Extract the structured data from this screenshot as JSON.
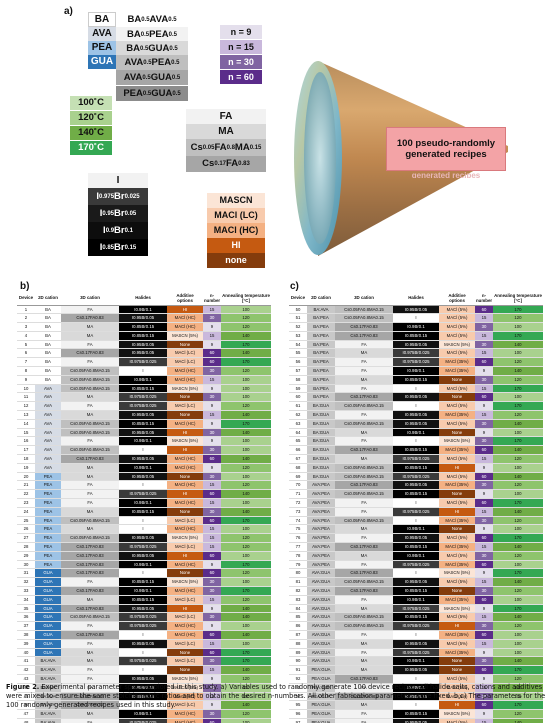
{
  "panels": {
    "a": "a)",
    "b": "b)",
    "c": "c)"
  },
  "panel_a": {
    "twod_single": [
      "BA",
      "AVA",
      "PEA",
      "GUA"
    ],
    "twod_mix": [
      {
        "p1": "BA",
        "p2": "0.5",
        "p3": "AVA",
        "p4": "0.5"
      },
      {
        "p1": "BA",
        "p2": "0.5",
        "p3": "PEA",
        "p4": "0.5"
      },
      {
        "p1": "BA",
        "p2": "0.5",
        "p3": "GUA",
        "p4": "0.5"
      },
      {
        "p1": "AVA",
        "p2": "0.5",
        "p3": "PEA",
        "p4": "0.5"
      },
      {
        "p1": "AVA",
        "p2": "0.5",
        "p3": "GUA",
        "p4": "0.5"
      },
      {
        "p1": "PEA",
        "p2": "0.5",
        "p3": "GUA",
        "p4": "0.5"
      }
    ],
    "n_values": [
      "n = 9",
      "n = 15",
      "n = 30",
      "n = 60"
    ],
    "temperatures": [
      "100˚C",
      "120˚C",
      "140˚C",
      "170˚C"
    ],
    "cations3d": {
      "fa": "FA",
      "ma": "MA",
      "cs1": {
        "a": "Cs",
        "b": "0.05",
        "c": "FA",
        "d": "0.8",
        "e": "MA",
        "f": "0.15"
      },
      "cs2": {
        "a": "Cs",
        "b": "0.17",
        "c": "FA",
        "d": "0.83"
      }
    },
    "halides": {
      "i": "I",
      "h1": {
        "a": "I",
        "b": "0.975",
        "c": "Br",
        "d": "0.025"
      },
      "h2": {
        "a": "I",
        "b": "0.95",
        "c": "Br",
        "d": "0.05"
      },
      "h3": {
        "a": "I",
        "b": "0.9",
        "c": "Br",
        "d": "0.1"
      },
      "h4": {
        "a": "I",
        "b": "0.85",
        "c": "Br",
        "d": "0.15"
      }
    },
    "additives": [
      "MASCN",
      "MACl (LC)",
      "MACl (HC)",
      "HI",
      "none"
    ],
    "recipes": [
      "100 pseudo-randomly",
      "generated recipes"
    ],
    "recipes_ghost": "generated recipes"
  },
  "colors": {
    "BA": "#ffffff",
    "AVA": "#d6dce5",
    "PEA": "#9dc3e6",
    "GUA": "#2e75b6",
    "MIX": "#c8c8c8",
    "h_I": "#ffffff",
    "h_975": "#3a3a3a",
    "h_95": "#111111",
    "h_9": "#000000",
    "h_85": "#000000",
    "add_MASCN": "#fbe5d6",
    "add_LC": "#f8cbad",
    "add_HC": "#f4b183",
    "add_HI": "#c55a11",
    "add_none": "#843c0c",
    "n9": "#e4dfec",
    "n15": "#c9b8dc",
    "n30": "#8064a2",
    "n60": "#5b2c8a",
    "t100": "#a9d18e",
    "t120": "#8ec46d",
    "t140": "#70ad47",
    "t170": "#34a853"
  },
  "table_headers": [
    "Device",
    "2D cation",
    "3D cation",
    "Halides",
    "Additive options",
    "n-number",
    "Annealing temperature [°C]"
  ],
  "table_b": [
    [
      "1",
      "BA",
      "FA",
      "I0.9Br0.1",
      "HI",
      "15",
      "100"
    ],
    [
      "2",
      "BA",
      "Cs0.17FA0.83",
      "I0.95Br0.05",
      "MACl (HC)",
      "30",
      "120"
    ],
    [
      "3",
      "BA",
      "MA",
      "I0.85Br0.15",
      "MACl (HC)",
      "9",
      "120"
    ],
    [
      "4",
      "BA",
      "MA",
      "I0.85Br0.15",
      "MASCN (5%)",
      "15",
      "140"
    ],
    [
      "5",
      "BA",
      "FA",
      "I0.95Br0.05",
      "None",
      "9",
      "170"
    ],
    [
      "6",
      "BA",
      "Cs0.17FA0.83",
      "I0.95Br0.05",
      "MACl (LC)",
      "60",
      "140"
    ],
    [
      "7",
      "BA",
      "FA",
      "I0.975Br0.025",
      "MACl (LC)",
      "60",
      "170"
    ],
    [
      "8",
      "BA",
      "Cs0.05FA0.8MA0.15",
      "I",
      "MACl (HC)",
      "30",
      "120"
    ],
    [
      "9",
      "BA",
      "Cs0.05FA0.8MA0.15",
      "I0.9Br0.1",
      "MACl (HC)",
      "15",
      "100"
    ],
    [
      "10",
      "AVA",
      "Cs0.05FA0.8MA0.15",
      "I0.85Br0.15",
      "MASCN (5%)",
      "9",
      "100"
    ],
    [
      "11",
      "AVA",
      "MA",
      "I0.975Br0.025",
      "None",
      "30",
      "100"
    ],
    [
      "12",
      "AVA",
      "FA",
      "I0.975Br0.025",
      "MACl (LC)",
      "9",
      "120"
    ],
    [
      "13",
      "AVA",
      "MA",
      "I0.95Br0.05",
      "None",
      "15",
      "140"
    ],
    [
      "14",
      "AVA",
      "Cs0.05FA0.8MA0.15",
      "I0.85Br0.15",
      "MACl (HC)",
      "9",
      "170"
    ],
    [
      "15",
      "AVA",
      "Cs0.05FA0.8MA0.15",
      "I0.95Br0.05",
      "HI",
      "30",
      "140"
    ],
    [
      "16",
      "AVA",
      "FA",
      "I0.9Br0.1",
      "MASCN (5%)",
      "9",
      "100"
    ],
    [
      "17",
      "AVA",
      "Cs0.05FA0.8MA0.15",
      "I",
      "HI",
      "30",
      "100"
    ],
    [
      "18",
      "AVA",
      "Cs0.17FA0.83",
      "I0.95Br0.05",
      "MACl (HC)",
      "60",
      "140"
    ],
    [
      "19",
      "AVA",
      "MA",
      "I0.9Br0.1",
      "MACl (HC)",
      "9",
      "120"
    ],
    [
      "20",
      "PEA",
      "MA",
      "I0.95Br0.05",
      "None",
      "30",
      "100"
    ],
    [
      "21",
      "PEA",
      "FA",
      "I",
      "MACl (HC)",
      "15",
      "120"
    ],
    [
      "22",
      "PEA",
      "FA",
      "I0.975Br0.025",
      "HI",
      "60",
      "140"
    ],
    [
      "23",
      "PEA",
      "FA",
      "I0.9Br0.1",
      "MACl (HC)",
      "15",
      "100"
    ],
    [
      "24",
      "PEA",
      "MA",
      "I0.85Br0.15",
      "None",
      "30",
      "140"
    ],
    [
      "25",
      "PEA",
      "Cs0.05FA0.8MA0.15",
      "I",
      "MACl (LC)",
      "60",
      "170"
    ],
    [
      "26",
      "PEA",
      "MA",
      "I",
      "MACl (HC)",
      "15",
      "100"
    ],
    [
      "27",
      "PEA",
      "Cs0.05FA0.8MA0.15",
      "I0.95Br0.05",
      "MASCN (5%)",
      "15",
      "120"
    ],
    [
      "28",
      "PEA",
      "Cs0.17FA0.83",
      "I0.975Br0.025",
      "MACl (LC)",
      "15",
      "120"
    ],
    [
      "29",
      "PEA",
      "Cs0.17FA0.83",
      "I0.95Br0.05",
      "HI",
      "60",
      "100"
    ],
    [
      "30",
      "PEA",
      "Cs0.17FA0.83",
      "I0.9Br0.1",
      "MACl (HC)",
      "9",
      "170"
    ],
    [
      "31",
      "GUA",
      "Cs0.17FA0.83",
      "I",
      "None",
      "60",
      "120"
    ],
    [
      "32",
      "GUA",
      "FA",
      "I0.85Br0.15",
      "MASCN (5%)",
      "30",
      "100"
    ],
    [
      "33",
      "GUA",
      "Cs0.17FA0.83",
      "I0.9Br0.1",
      "MACl (HC)",
      "30",
      "170"
    ],
    [
      "34",
      "GUA",
      "MA",
      "I0.85Br0.15",
      "MACl (LC)",
      "15",
      "120"
    ],
    [
      "35",
      "GUA",
      "Cs0.17FA0.83",
      "I0.95Br0.05",
      "HI",
      "9",
      "140"
    ],
    [
      "36",
      "GUA",
      "Cs0.05FA0.8MA0.15",
      "I0.975Br0.025",
      "MACl (LC)",
      "30",
      "140"
    ],
    [
      "37",
      "GUA",
      "FA",
      "I0.975Br0.025",
      "MACl (HC)",
      "9",
      "100"
    ],
    [
      "38",
      "GUA",
      "Cs0.17FA0.83",
      "I",
      "MACl (HC)",
      "60",
      "140"
    ],
    [
      "39",
      "GUA",
      "FA",
      "I0.95Br0.05",
      "MACl (LC)",
      "15",
      "100"
    ],
    [
      "40",
      "GUA",
      "MA",
      "I",
      "None",
      "60",
      "170"
    ],
    [
      "41",
      "BA:AVA",
      "MA",
      "I0.975Br0.025",
      "MACl (LC)",
      "30",
      "170"
    ],
    [
      "42",
      "BA:AVA",
      "FA",
      "I",
      "None",
      "15",
      "140"
    ],
    [
      "43",
      "BA:AVA",
      "FA",
      "I0.95Br0.05",
      "MASCN (5%)",
      "9",
      "120"
    ],
    [
      "44",
      "BA:AVA",
      "FA",
      "I0.85Br0.15",
      "MASCN (5%)",
      "30",
      "100"
    ],
    [
      "45",
      "BA:AVA",
      "Cs0.17FA0.83",
      "I0.85Br0.15",
      "MACl (HC)",
      "15",
      "100"
    ],
    [
      "46",
      "BA:AVA",
      "Cs0.17FA0.83",
      "I",
      "MACl (LC)",
      "9",
      "140"
    ],
    [
      "47",
      "BA:AVA",
      "MA",
      "I0.9Br0.1",
      "MACl (HC)",
      "30",
      "120"
    ],
    [
      "48",
      "BA:AVA",
      "FA",
      "I0.975Br0.025",
      "MACl (HC)",
      "60",
      "100"
    ],
    [
      "49",
      "BA:AVA",
      "Cs0.05FA0.8MA0.15",
      "I0.975Br0.025",
      "HI",
      "15",
      "170"
    ]
  ],
  "table_c": [
    [
      "50",
      "BA:AVA",
      "Cs0.05FA0.8MA0.15",
      "I0.95Br0.05",
      "MACl (5%)",
      "60",
      "170"
    ],
    [
      "51",
      "BA:PEA",
      "Cs0.05FA0.8MA0.15",
      "I",
      "MACl (5%)",
      "15",
      "120"
    ],
    [
      "52",
      "BA:PEA",
      "Cs0.17FA0.83",
      "I0.9Br0.1",
      "MACl (5%)",
      "30",
      "100"
    ],
    [
      "53",
      "BA:PEA",
      "Cs0.17FA0.83",
      "I0.85Br0.15",
      "MACl (5%)",
      "15",
      "170"
    ],
    [
      "54",
      "BA:PEA",
      "FA",
      "I0.95Br0.05",
      "MASCN (5%)",
      "30",
      "140"
    ],
    [
      "55",
      "BA:PEA",
      "MA",
      "I0.975Br0.025",
      "MACl (5%)",
      "15",
      "100"
    ],
    [
      "56",
      "BA:PEA",
      "FA",
      "I0.975Br0.025",
      "MACl (35%)",
      "60",
      "120"
    ],
    [
      "57",
      "BA:PEA",
      "FA",
      "I0.9Br0.1",
      "MACl (35%)",
      "9",
      "140"
    ],
    [
      "58",
      "BA:PEA",
      "MA",
      "I0.85Br0.15",
      "None",
      "30",
      "120"
    ],
    [
      "59",
      "BA:PEA",
      "FA",
      "I",
      "MACl (5%)",
      "15",
      "170"
    ],
    [
      "60",
      "BA:PEA",
      "Cs0.17FA0.83",
      "I0.95Br0.05",
      "None",
      "60",
      "100"
    ],
    [
      "61",
      "BA:GUA",
      "Cs0.05FA0.8MA0.15",
      "I",
      "MACl (5%)",
      "9",
      "170"
    ],
    [
      "62",
      "BA:GUA",
      "FA",
      "I0.95Br0.05",
      "MACl (35%)",
      "15",
      "120"
    ],
    [
      "63",
      "BA:GUA",
      "Cs0.05FA0.8MA0.15",
      "I0.95Br0.05",
      "MACl (5%)",
      "30",
      "140"
    ],
    [
      "64",
      "BA:GUA",
      "MA",
      "I0.9Br0.1",
      "None",
      "9",
      "100"
    ],
    [
      "65",
      "BA:GUA",
      "FA",
      "I",
      "MASCN (5%)",
      "30",
      "170"
    ],
    [
      "66",
      "BA:GUA",
      "Cs0.17FA0.83",
      "I0.85Br0.15",
      "MACl (35%)",
      "60",
      "140"
    ],
    [
      "67",
      "BA:GUA",
      "MA",
      "I0.975Br0.025",
      "MACl (5%)",
      "15",
      "120"
    ],
    [
      "68",
      "BA:GUA",
      "Cs0.05FA0.8MA0.15",
      "I0.85Br0.15",
      "HI",
      "9",
      "100"
    ],
    [
      "69",
      "BA:GUA",
      "Cs0.05FA0.8MA0.15",
      "I0.975Br0.025",
      "MACl (5%)",
      "60",
      "140"
    ],
    [
      "70",
      "AVA:PEA",
      "Cs0.17FA0.83",
      "I0.95Br0.05",
      "MACl (35%)",
      "30",
      "120"
    ],
    [
      "71",
      "AVA:PEA",
      "Cs0.05FA0.8MA0.15",
      "I0.85Br0.15",
      "None",
      "9",
      "100"
    ],
    [
      "72",
      "AVA:PEA",
      "FA",
      "I",
      "MACl (5%)",
      "60",
      "170"
    ],
    [
      "73",
      "AVA:PEA",
      "FA",
      "I0.975Br0.025",
      "HI",
      "15",
      "140"
    ],
    [
      "74",
      "AVA:PEA",
      "Cs0.05FA0.8MA0.15",
      "I",
      "MACl (35%)",
      "30",
      "120"
    ],
    [
      "75",
      "AVA:PEA",
      "MA",
      "I0.9Br0.1",
      "None",
      "9",
      "100"
    ],
    [
      "76",
      "AVA:PEA",
      "FA",
      "I0.95Br0.05",
      "MACl (5%)",
      "60",
      "170"
    ],
    [
      "77",
      "AVA:PEA",
      "Cs0.17FA0.83",
      "I0.85Br0.15",
      "MACl (35%)",
      "15",
      "140"
    ],
    [
      "78",
      "AVA:PEA",
      "MA",
      "I0.9Br0.1",
      "MACl (5%)",
      "30",
      "120"
    ],
    [
      "79",
      "AVA:PEA",
      "FA",
      "I0.975Br0.025",
      "MACl (35%)",
      "60",
      "100"
    ],
    [
      "80",
      "AVA:GUA",
      "Cs0.17FA0.83",
      "I",
      "MASCN (5%)",
      "9",
      "170"
    ],
    [
      "81",
      "AVA:GUA",
      "Cs0.05FA0.8MA0.15",
      "I0.95Br0.05",
      "MACl (5%)",
      "15",
      "140"
    ],
    [
      "82",
      "AVA:GUA",
      "Cs0.17FA0.83",
      "I0.85Br0.15",
      "None",
      "30",
      "120"
    ],
    [
      "83",
      "AVA:GUA",
      "FA",
      "I0.9Br0.1",
      "MACl (35%)",
      "60",
      "100"
    ],
    [
      "84",
      "AVA:GUA",
      "MA",
      "I0.975Br0.025",
      "MASCN (5%)",
      "9",
      "170"
    ],
    [
      "85",
      "AVA:GUA",
      "Cs0.05FA0.8MA0.15",
      "I0.85Br0.15",
      "MACl (5%)",
      "15",
      "140"
    ],
    [
      "86",
      "AVA:GUA",
      "Cs0.05FA0.8MA0.15",
      "I0.975Br0.025",
      "HI",
      "30",
      "120"
    ],
    [
      "87",
      "AVA:GUA",
      "FA",
      "I",
      "MACl (35%)",
      "60",
      "100"
    ],
    [
      "88",
      "AVA:GUA",
      "MA",
      "I0.95Br0.05",
      "MACl (5%)",
      "15",
      "100"
    ],
    [
      "89",
      "AVA:GUA",
      "FA",
      "I0.975Br0.025",
      "MACl (35%)",
      "9",
      "100"
    ],
    [
      "90",
      "AVA:GUA",
      "MA",
      "I0.9Br0.1",
      "None",
      "30",
      "140"
    ],
    [
      "91",
      "PEA:GUA",
      "MA",
      "I0.95Br0.05",
      "None",
      "60",
      "170"
    ],
    [
      "92",
      "PEA:GUA",
      "Cs0.17FA0.83",
      "I",
      "MACl (5%)",
      "9",
      "120"
    ],
    [
      "93",
      "PEA:GUA",
      "FA",
      "I0.9Br0.1",
      "MACl (5%)",
      "15",
      "140"
    ],
    [
      "94",
      "PEA:GUA",
      "Cs0.17FA0.83",
      "I0.85Br0.15",
      "MACl (5%)",
      "30",
      "100"
    ],
    [
      "95",
      "PEA:GUA",
      "MA",
      "I",
      "HI",
      "60",
      "170"
    ],
    [
      "96",
      "PEA:GUA",
      "FA",
      "I0.85Br0.15",
      "MASCN (5%)",
      "9",
      "120"
    ],
    [
      "97",
      "PEA:GUA",
      "FA",
      "I0.95Br0.05",
      "MACl (5%)",
      "15",
      "140"
    ],
    [
      "98",
      "PEA:GUA",
      "Cs0.05FA0.8MA0.15",
      "I",
      "None",
      "30",
      "100"
    ],
    [
      "99",
      "PEA:GUA",
      "MA",
      "I0.975Br0.025",
      "MACl (35%)",
      "9",
      "170"
    ],
    [
      "100",
      "PEA:GUA",
      "Cs0.05FA0.8MA0.15",
      "I0.9Br0.1",
      "MACl (35%)",
      "15",
      "140"
    ]
  ],
  "caption": {
    "label": "Figure 2.",
    "text": " Experimental parameter space explored in this study. a) Variables used to randomly generate 100 device recipes. All halide salts, cations and additives were mixed to ensure the same stoichiometric ratios and to obtain the desired n-numbers. All other fabrication parameters were fixed. b,c) The parameters for the 100 randomly generated recipes used in this study."
  }
}
